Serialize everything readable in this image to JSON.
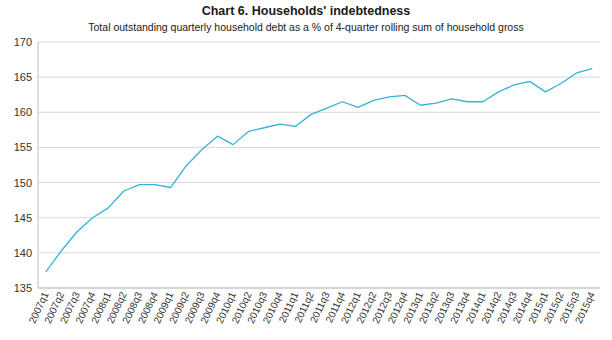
{
  "chart_data": {
    "type": "line",
    "title": "Chart 6. Households' indebtedness",
    "subtitle": "Total outstanding quarterly household debt as a % of 4-quarter rolling sum of household gross",
    "categories": [
      "2007q1",
      "2007q2",
      "2007q3",
      "2007q4",
      "2008q1",
      "2008q2",
      "2008q3",
      "2008q4",
      "2009q1",
      "2009q2",
      "2009q3",
      "2009q4",
      "2010q1",
      "2010q2",
      "2010q3",
      "2010q4",
      "2011q1",
      "2011q2",
      "2011q3",
      "2011q4",
      "2012q1",
      "2012q2",
      "2012q3",
      "2012q4",
      "2013q1",
      "2013q2",
      "2013q3",
      "2013q4",
      "2014q1",
      "2014q2",
      "2014q3",
      "2014q4",
      "2015q1",
      "2015q2",
      "2015q3",
      "2015q4"
    ],
    "values": [
      137.3,
      140.3,
      143.0,
      145.0,
      146.4,
      148.8,
      149.7,
      149.7,
      149.3,
      152.4,
      154.7,
      156.6,
      155.4,
      157.3,
      157.8,
      158.3,
      158.0,
      159.7,
      160.6,
      161.5,
      160.7,
      161.7,
      162.2,
      162.4,
      161.0,
      161.3,
      161.9,
      161.5,
      161.5,
      162.9,
      163.9,
      164.4,
      162.9,
      164.1,
      165.6,
      166.2
    ],
    "color": "#35b3d8",
    "ylim": [
      135,
      170
    ],
    "yticks": [
      135,
      140,
      145,
      150,
      155,
      160,
      165,
      170
    ],
    "grid": true
  }
}
